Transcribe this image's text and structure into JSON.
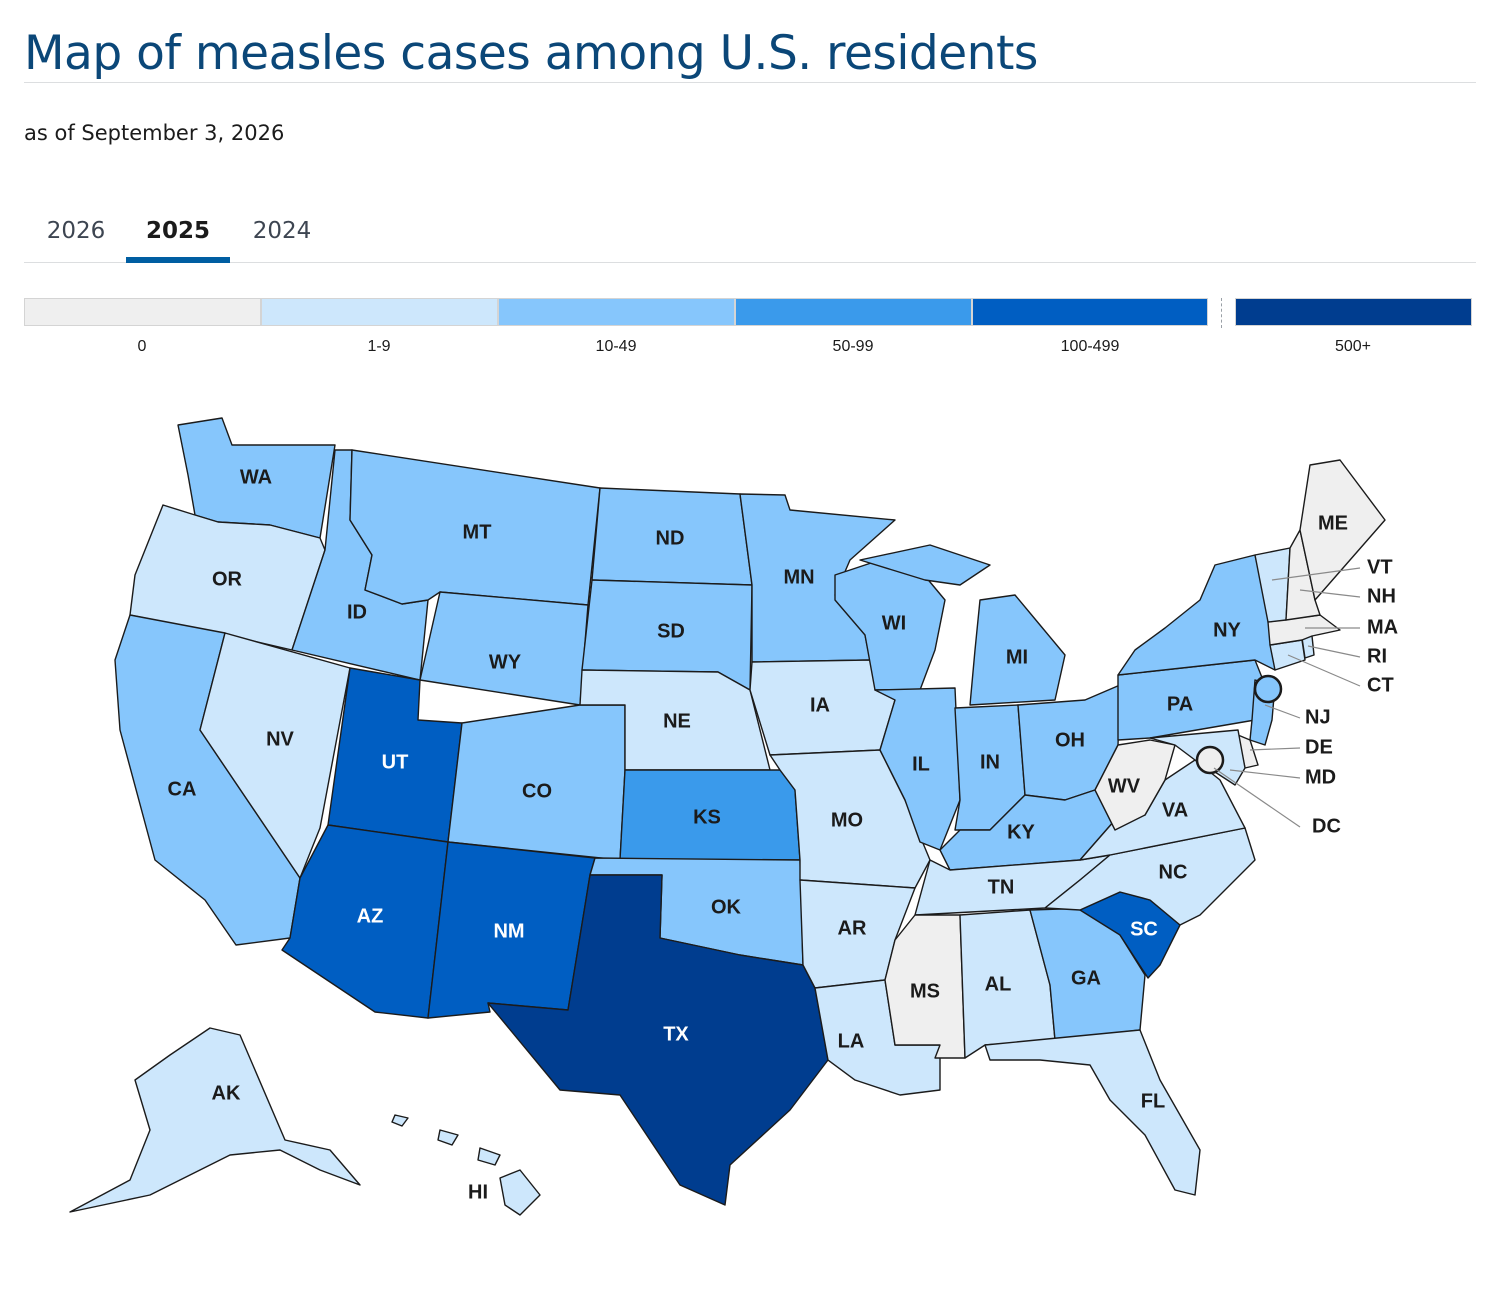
{
  "header": {
    "title": "Map of measles cases among U.S. residents",
    "subtitle": "as of September 3, 2026"
  },
  "tabs": [
    {
      "label": "2026",
      "active": false
    },
    {
      "label": "2025",
      "active": true
    },
    {
      "label": "2024",
      "active": false
    }
  ],
  "legend": [
    {
      "label": "0",
      "color": "#efefef"
    },
    {
      "label": "1-9",
      "color": "#cde7fc"
    },
    {
      "label": "10-49",
      "color": "#86c6fc"
    },
    {
      "label": "50-99",
      "color": "#3a9aeb"
    },
    {
      "label": "100-499",
      "color": "#005ec2"
    },
    {
      "label": "500+",
      "color": "#003d8f"
    }
  ],
  "states": {
    "WA": {
      "label": "WA",
      "bin": "10-49"
    },
    "OR": {
      "label": "OR",
      "bin": "1-9"
    },
    "CA": {
      "label": "CA",
      "bin": "10-49"
    },
    "ID": {
      "label": "ID",
      "bin": "10-49"
    },
    "NV": {
      "label": "NV",
      "bin": "1-9"
    },
    "MT": {
      "label": "MT",
      "bin": "10-49"
    },
    "WY": {
      "label": "WY",
      "bin": "10-49"
    },
    "UT": {
      "label": "UT",
      "bin": "100-499"
    },
    "AZ": {
      "label": "AZ",
      "bin": "100-499"
    },
    "CO": {
      "label": "CO",
      "bin": "10-49"
    },
    "NM": {
      "label": "NM",
      "bin": "100-499"
    },
    "ND": {
      "label": "ND",
      "bin": "10-49"
    },
    "SD": {
      "label": "SD",
      "bin": "10-49"
    },
    "NE": {
      "label": "NE",
      "bin": "1-9"
    },
    "KS": {
      "label": "KS",
      "bin": "50-99"
    },
    "OK": {
      "label": "OK",
      "bin": "10-49"
    },
    "TX": {
      "label": "TX",
      "bin": "500+"
    },
    "MN": {
      "label": "MN",
      "bin": "10-49"
    },
    "IA": {
      "label": "IA",
      "bin": "1-9"
    },
    "MO": {
      "label": "MO",
      "bin": "1-9"
    },
    "AR": {
      "label": "AR",
      "bin": "1-9"
    },
    "LA": {
      "label": "LA",
      "bin": "1-9"
    },
    "WI": {
      "label": "WI",
      "bin": "10-49"
    },
    "IL": {
      "label": "IL",
      "bin": "10-49"
    },
    "MI": {
      "label": "MI",
      "bin": "10-49"
    },
    "IN": {
      "label": "IN",
      "bin": "10-49"
    },
    "OH": {
      "label": "OH",
      "bin": "10-49"
    },
    "KY": {
      "label": "KY",
      "bin": "10-49"
    },
    "TN": {
      "label": "TN",
      "bin": "1-9"
    },
    "MS": {
      "label": "MS",
      "bin": "0"
    },
    "AL": {
      "label": "AL",
      "bin": "1-9"
    },
    "GA": {
      "label": "GA",
      "bin": "10-49"
    },
    "FL": {
      "label": "FL",
      "bin": "1-9"
    },
    "SC": {
      "label": "SC",
      "bin": "100-499"
    },
    "NC": {
      "label": "NC",
      "bin": "1-9"
    },
    "VA": {
      "label": "VA",
      "bin": "1-9"
    },
    "WV": {
      "label": "WV",
      "bin": "0"
    },
    "PA": {
      "label": "PA",
      "bin": "10-49"
    },
    "NY": {
      "label": "NY",
      "bin": "10-49"
    },
    "ME": {
      "label": "ME",
      "bin": "0"
    },
    "VT": {
      "label": "VT",
      "bin": "1-9"
    },
    "NH": {
      "label": "NH",
      "bin": "0"
    },
    "MA": {
      "label": "MA",
      "bin": "0"
    },
    "RI": {
      "label": "RI",
      "bin": "1-9"
    },
    "CT": {
      "label": "CT",
      "bin": "1-9"
    },
    "NJ": {
      "label": "NJ",
      "bin": "10-49"
    },
    "DE": {
      "label": "DE",
      "bin": "0"
    },
    "MD": {
      "label": "MD",
      "bin": "1-9"
    },
    "DC": {
      "label": "DC",
      "bin": "0"
    },
    "AK": {
      "label": "AK",
      "bin": "1-9"
    },
    "HI": {
      "label": "HI",
      "bin": "1-9"
    }
  }
}
